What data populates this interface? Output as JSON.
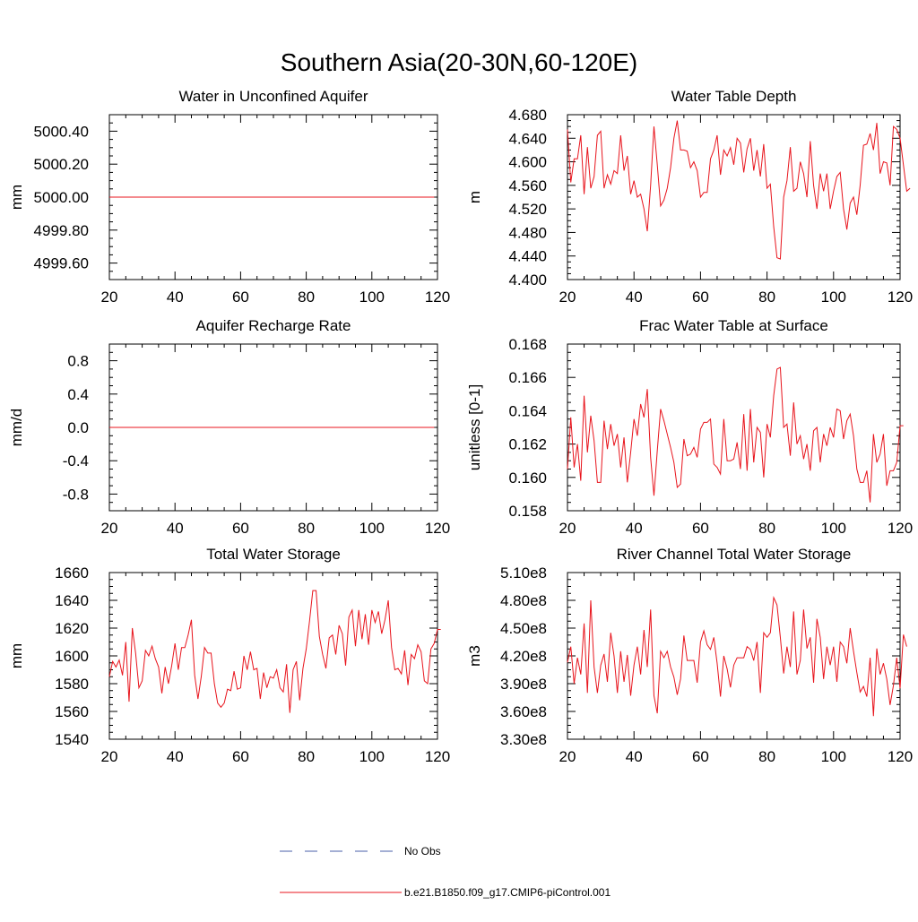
{
  "page_title": "Southern Asia(20-30N,60-120E)",
  "legend": {
    "entries": [
      {
        "label": "No Obs",
        "color": "#4a5fa8",
        "style": "dashed"
      },
      {
        "label": "b.e21.B1850.f09_g17.CMIP6-piControl.001",
        "color": "#e8141c",
        "style": "solid"
      }
    ]
  },
  "colors": {
    "line": "#e8141c",
    "obs": "#4a5fa8"
  },
  "chart_data": [
    {
      "type": "line",
      "title": "Water in Unconfined Aquifer",
      "ylabel": "mm",
      "xlabel": "",
      "xlim": [
        20,
        120
      ],
      "ylim": [
        4999.5,
        5000.5
      ],
      "xticks": [
        20,
        40,
        60,
        80,
        100,
        120
      ],
      "xtick_labels": [
        "20",
        "40",
        "60",
        "80",
        "100",
        "120"
      ],
      "yticks": [
        4999.6,
        4999.8,
        5000.0,
        5000.2,
        5000.4
      ],
      "ytick_labels": [
        "4999.60",
        "4999.80",
        "5000.00",
        "5000.20",
        "5000.40"
      ],
      "x_start": 20,
      "x_step": 1,
      "values": [
        5000,
        5000,
        5000,
        5000,
        5000,
        5000,
        5000,
        5000,
        5000,
        5000,
        5000,
        5000,
        5000,
        5000,
        5000,
        5000,
        5000,
        5000,
        5000,
        5000,
        5000,
        5000,
        5000,
        5000,
        5000,
        5000,
        5000,
        5000,
        5000,
        5000,
        5000,
        5000,
        5000,
        5000,
        5000,
        5000,
        5000,
        5000,
        5000,
        5000,
        5000,
        5000,
        5000,
        5000,
        5000,
        5000,
        5000,
        5000,
        5000,
        5000,
        5000,
        5000,
        5000,
        5000,
        5000,
        5000,
        5000,
        5000,
        5000,
        5000,
        5000,
        5000,
        5000,
        5000,
        5000,
        5000,
        5000,
        5000,
        5000,
        5000,
        5000,
        5000,
        5000,
        5000,
        5000,
        5000,
        5000,
        5000,
        5000,
        5000,
        5000,
        5000,
        5000,
        5000,
        5000,
        5000,
        5000,
        5000,
        5000,
        5000,
        5000,
        5000,
        5000,
        5000,
        5000,
        5000,
        5000,
        5000,
        5000,
        5000
      ]
    },
    {
      "type": "line",
      "title": "Water Table Depth",
      "ylabel": "m",
      "xlabel": "",
      "xlim": [
        20,
        120
      ],
      "ylim": [
        4.4,
        4.68
      ],
      "xticks": [
        20,
        40,
        60,
        80,
        100,
        120
      ],
      "xtick_labels": [
        "20",
        "40",
        "60",
        "80",
        "100",
        "120"
      ],
      "yticks": [
        4.4,
        4.44,
        4.48,
        4.52,
        4.56,
        4.6,
        4.64,
        4.68
      ],
      "ytick_labels": [
        "4.400",
        "4.440",
        "4.480",
        "4.520",
        "4.560",
        "4.600",
        "4.640",
        "4.680"
      ],
      "x_start": 20,
      "x_step": 1,
      "values": [
        4.655,
        4.565,
        4.605,
        4.605,
        4.645,
        4.545,
        4.625,
        4.555,
        4.575,
        4.645,
        4.652,
        4.555,
        4.578,
        4.562,
        4.585,
        4.58,
        4.645,
        4.585,
        4.61,
        4.545,
        4.568,
        4.54,
        4.545,
        4.52,
        4.482,
        4.56,
        4.66,
        4.595,
        4.525,
        4.535,
        4.555,
        4.59,
        4.64,
        4.67,
        4.62,
        4.62,
        4.618,
        4.59,
        4.6,
        4.585,
        4.54,
        4.548,
        4.548,
        4.605,
        4.62,
        4.645,
        4.578,
        4.62,
        4.61,
        4.624,
        4.595,
        4.64,
        4.632,
        4.582,
        4.622,
        4.64,
        4.585,
        4.62,
        4.575,
        4.63,
        4.555,
        4.562,
        4.49,
        4.437,
        4.435,
        4.54,
        4.568,
        4.625,
        4.55,
        4.555,
        4.6,
        4.58,
        4.54,
        4.635,
        4.56,
        4.52,
        4.58,
        4.55,
        4.58,
        4.52,
        4.55,
        4.575,
        4.582,
        4.52,
        4.485,
        4.53,
        4.54,
        4.51,
        4.56,
        4.628,
        4.63,
        4.648,
        4.62,
        4.666,
        4.58,
        4.6,
        4.598,
        4.56,
        4.66,
        4.655,
        4.64,
        4.595,
        4.55,
        4.555
      ]
    },
    {
      "type": "line",
      "title": "Aquifer Recharge Rate",
      "ylabel": "mm/d",
      "xlabel": "",
      "xlim": [
        20,
        120
      ],
      "ylim": [
        -1.0,
        1.0
      ],
      "xticks": [
        20,
        40,
        60,
        80,
        100,
        120
      ],
      "xtick_labels": [
        "20",
        "40",
        "60",
        "80",
        "100",
        "120"
      ],
      "yticks": [
        -0.8,
        -0.4,
        0.0,
        0.4,
        0.8
      ],
      "ytick_labels": [
        "-0.8",
        "-0.4",
        "0.0",
        "0.4",
        "0.8"
      ],
      "x_start": 20,
      "x_step": 1,
      "values": [
        0,
        0,
        0,
        0,
        0,
        0,
        0,
        0,
        0,
        0,
        0,
        0,
        0,
        0,
        0,
        0,
        0,
        0,
        0,
        0,
        0,
        0,
        0,
        0,
        0,
        0,
        0,
        0,
        0,
        0,
        0,
        0,
        0,
        0,
        0,
        0,
        0,
        0,
        0,
        0,
        0,
        0,
        0,
        0,
        0,
        0,
        0,
        0,
        0,
        0,
        0,
        0,
        0,
        0,
        0,
        0,
        0,
        0,
        0,
        0,
        0,
        0,
        0,
        0,
        0,
        0,
        0,
        0,
        0,
        0,
        0,
        0,
        0,
        0,
        0,
        0,
        0,
        0,
        0,
        0,
        0,
        0,
        0,
        0,
        0,
        0,
        0,
        0,
        0,
        0,
        0,
        0,
        0,
        0,
        0,
        0,
        0,
        0,
        0,
        0
      ]
    },
    {
      "type": "line",
      "title": "Frac Water Table at Surface",
      "ylabel": "unitless [0-1]",
      "xlabel": "",
      "xlim": [
        20,
        120
      ],
      "ylim": [
        0.158,
        0.168
      ],
      "xticks": [
        20,
        40,
        60,
        80,
        100,
        120
      ],
      "xtick_labels": [
        "20",
        "40",
        "60",
        "80",
        "100",
        "120"
      ],
      "yticks": [
        0.158,
        0.16,
        0.162,
        0.164,
        0.166,
        0.168
      ],
      "ytick_labels": [
        "0.158",
        "0.160",
        "0.162",
        "0.164",
        "0.166",
        "0.168"
      ],
      "x_start": 20,
      "x_step": 1,
      "values": [
        0.1605,
        0.1636,
        0.1606,
        0.162,
        0.1598,
        0.1649,
        0.1615,
        0.1637,
        0.1622,
        0.1597,
        0.1597,
        0.1634,
        0.1617,
        0.1632,
        0.1619,
        0.1626,
        0.1606,
        0.1624,
        0.1597,
        0.1615,
        0.1635,
        0.1625,
        0.1644,
        0.1636,
        0.1653,
        0.1612,
        0.1589,
        0.1616,
        0.1641,
        0.1634,
        0.1626,
        0.1618,
        0.1609,
        0.1594,
        0.1596,
        0.1623,
        0.1613,
        0.1614,
        0.1618,
        0.1612,
        0.1629,
        0.1633,
        0.1633,
        0.1635,
        0.1608,
        0.1606,
        0.1602,
        0.1635,
        0.161,
        0.161,
        0.1611,
        0.1621,
        0.1605,
        0.1638,
        0.1604,
        0.1641,
        0.1609,
        0.163,
        0.1627,
        0.16,
        0.1632,
        0.1624,
        0.1649,
        0.1665,
        0.1666,
        0.163,
        0.1632,
        0.1613,
        0.1645,
        0.162,
        0.1625,
        0.1611,
        0.162,
        0.1604,
        0.1628,
        0.163,
        0.1609,
        0.1626,
        0.1619,
        0.163,
        0.1624,
        0.1641,
        0.164,
        0.1623,
        0.1634,
        0.1638,
        0.1625,
        0.1605,
        0.1597,
        0.1597,
        0.1604,
        0.1585,
        0.1626,
        0.1609,
        0.1614,
        0.1626,
        0.1595,
        0.1604,
        0.1604,
        0.1609,
        0.1631,
        0.1631
      ]
    },
    {
      "type": "line",
      "title": "Total Water Storage",
      "ylabel": "mm",
      "xlabel": "",
      "xlim": [
        20,
        120
      ],
      "ylim": [
        1540,
        1660
      ],
      "xticks": [
        20,
        40,
        60,
        80,
        100,
        120
      ],
      "xtick_labels": [
        "20",
        "40",
        "60",
        "80",
        "100",
        "120"
      ],
      "yticks": [
        1540,
        1560,
        1580,
        1600,
        1620,
        1640,
        1660
      ],
      "ytick_labels": [
        "1540",
        "1560",
        "1580",
        "1600",
        "1620",
        "1640",
        "1660"
      ],
      "x_start": 20,
      "x_step": 1,
      "values": [
        1585,
        1596,
        1592,
        1597,
        1586,
        1610,
        1567,
        1620,
        1602,
        1577,
        1582,
        1604,
        1600,
        1607,
        1598,
        1592,
        1573,
        1592,
        1580,
        1593,
        1609,
        1590,
        1606,
        1606,
        1615,
        1626,
        1586,
        1569,
        1585,
        1606,
        1602,
        1602,
        1580,
        1566,
        1563,
        1566,
        1576,
        1575,
        1589,
        1576,
        1577,
        1600,
        1590,
        1603,
        1590,
        1591,
        1569,
        1588,
        1577,
        1585,
        1584,
        1590,
        1577,
        1574,
        1594,
        1559,
        1590,
        1596,
        1568,
        1591,
        1605,
        1625,
        1647,
        1647,
        1614,
        1601,
        1591,
        1613,
        1615,
        1601,
        1622,
        1616,
        1593,
        1628,
        1633,
        1607,
        1633,
        1612,
        1630,
        1608,
        1633,
        1624,
        1632,
        1616,
        1626,
        1640,
        1606,
        1590,
        1591,
        1587,
        1604,
        1579,
        1601,
        1598,
        1608,
        1603,
        1582,
        1580,
        1605,
        1609,
        1619,
        1619
      ]
    },
    {
      "type": "line",
      "title": "River Channel Total Water Storage",
      "ylabel": "m3",
      "xlabel": "",
      "xlim": [
        20,
        120
      ],
      "ylim": [
        330000000,
        510000000
      ],
      "xticks": [
        20,
        40,
        60,
        80,
        100,
        120
      ],
      "xtick_labels": [
        "20",
        "40",
        "60",
        "80",
        "100",
        "120"
      ],
      "yticks": [
        330000000,
        360000000,
        390000000,
        420000000,
        450000000,
        480000000,
        510000000
      ],
      "ytick_labels": [
        "3.30e8",
        "3.60e8",
        "3.90e8",
        "4.20e8",
        "4.50e8",
        "4.80e8",
        "5.10e8"
      ],
      "x_start": 20,
      "x_step": 1,
      "values": [
        413000000,
        430000000,
        390000000,
        418000000,
        400000000,
        455000000,
        380000000,
        480000000,
        408000000,
        380000000,
        410000000,
        422000000,
        392000000,
        445000000,
        420000000,
        380000000,
        425000000,
        392000000,
        421000000,
        377000000,
        410000000,
        430000000,
        400000000,
        448000000,
        408000000,
        470000000,
        377000000,
        358000000,
        425000000,
        418000000,
        425000000,
        408000000,
        397000000,
        378000000,
        395000000,
        442000000,
        415000000,
        415000000,
        415000000,
        391000000,
        435000000,
        447000000,
        432000000,
        427000000,
        440000000,
        412000000,
        376000000,
        420000000,
        406000000,
        386000000,
        410000000,
        418000000,
        418000000,
        418000000,
        430000000,
        427000000,
        415000000,
        435000000,
        380000000,
        445000000,
        440000000,
        445000000,
        483000000,
        475000000,
        440000000,
        401000000,
        430000000,
        408000000,
        468000000,
        400000000,
        415000000,
        470000000,
        428000000,
        440000000,
        391000000,
        460000000,
        440000000,
        395000000,
        430000000,
        410000000,
        430000000,
        392000000,
        435000000,
        430000000,
        412000000,
        450000000,
        425000000,
        402000000,
        381000000,
        387000000,
        376000000,
        418000000,
        355000000,
        428000000,
        400000000,
        412000000,
        395000000,
        367000000,
        388000000,
        418000000,
        385000000,
        443000000,
        430000000
      ]
    }
  ]
}
